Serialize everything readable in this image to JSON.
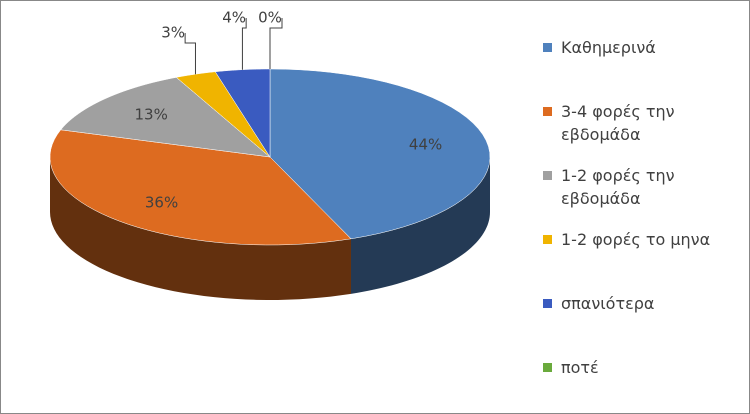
{
  "chart_data": {
    "type": "pie3d",
    "categories": [
      "Καθημερινά",
      "3-4 φορές την εβδομάδα",
      "1-2 φορές την εβδομάδα",
      "1-2 φορές το μηνα",
      "σπανιότερα",
      "ποτέ"
    ],
    "values": [
      44,
      36,
      13,
      3,
      4,
      0
    ],
    "value_labels": [
      "44%",
      "36%",
      "13%",
      "3%",
      "4%",
      "0%"
    ],
    "colors": [
      "#4f81bd",
      "#dd6b20",
      "#a0a0a0",
      "#f0b400",
      "#3a5bc0",
      "#6aaa3c"
    ]
  }
}
